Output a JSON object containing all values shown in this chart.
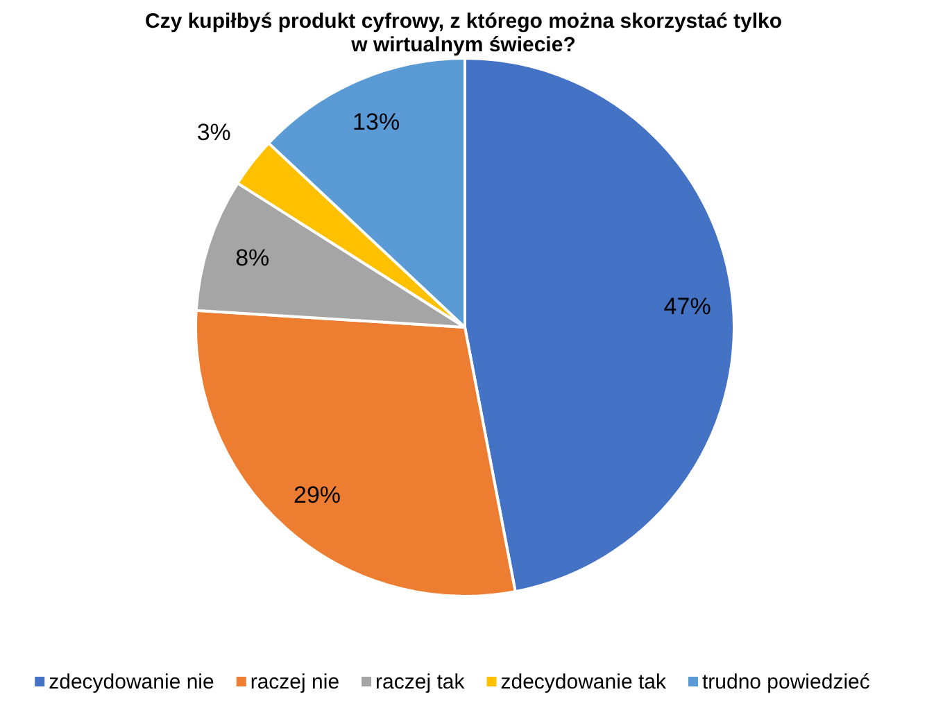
{
  "chart_data": {
    "type": "pie",
    "title": "Czy kupiłbyś produkt cyfrowy, z którego można skorzystać tylko w wirtualnym świecie?",
    "categories": [
      "zdecydowanie nie",
      "raczej nie",
      "raczej tak",
      "zdecydowanie tak",
      "trudno powiedzieć"
    ],
    "values": [
      47,
      29,
      8,
      3,
      13
    ],
    "colors": [
      "#4472c4",
      "#ed7d31",
      "#a5a5a5",
      "#ffc000",
      "#5b9bd5"
    ],
    "value_labels": [
      "47%",
      "29%",
      "8%",
      "3%",
      "13%"
    ],
    "legend": "bottom"
  }
}
